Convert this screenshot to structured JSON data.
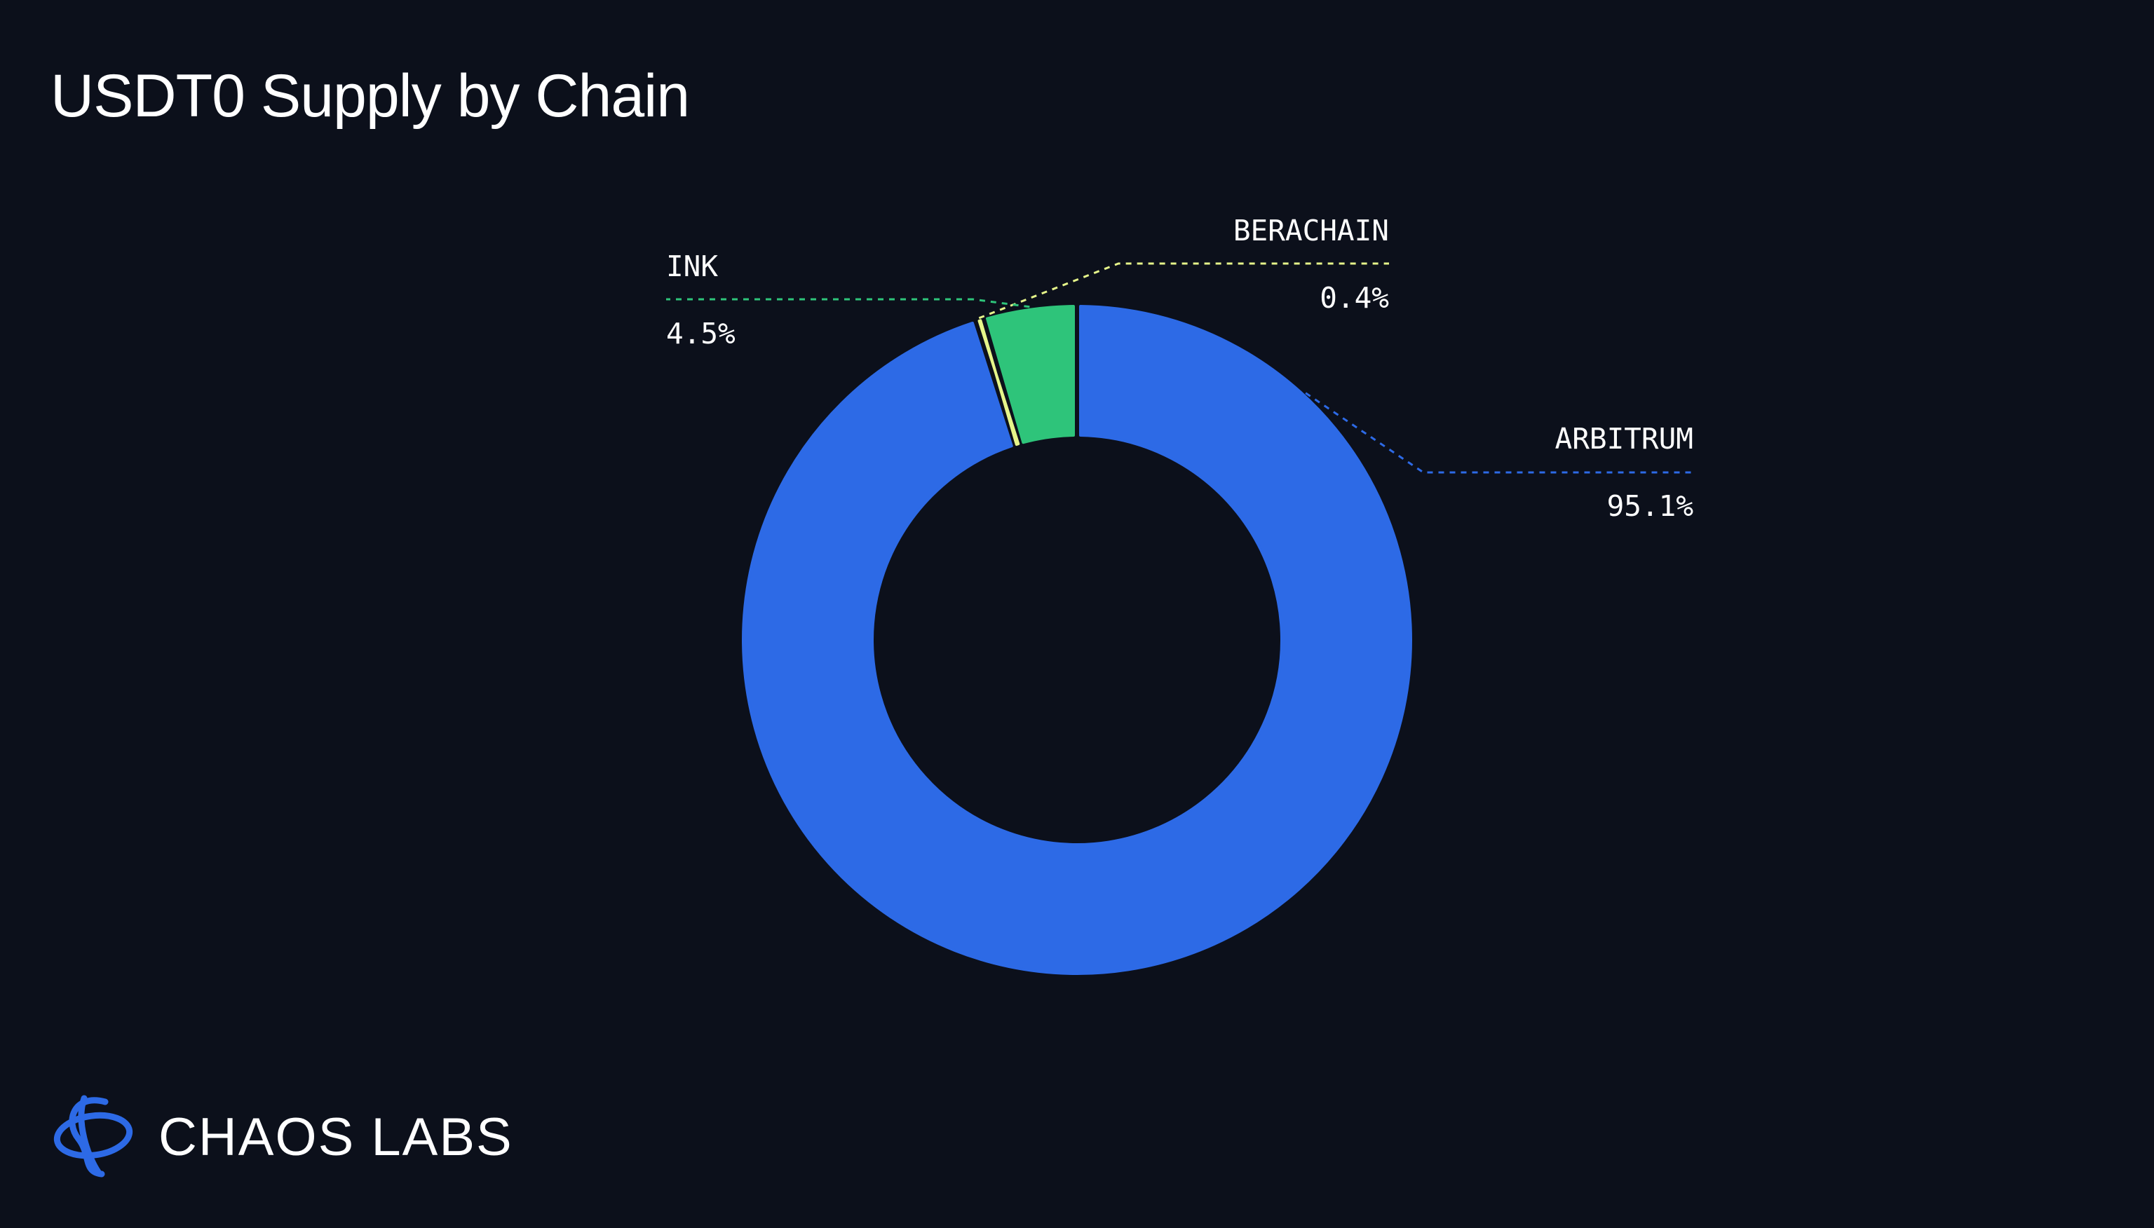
{
  "chart_data": {
    "type": "pie",
    "title": "USDT0 Supply by Chain",
    "slices": [
      {
        "name": "ARBITRUM",
        "value": 95.1,
        "label": "95.1%",
        "color": "#2d6ae6"
      },
      {
        "name": "BERACHAIN",
        "value": 0.4,
        "label": "0.4%",
        "color": "#e6f58a"
      },
      {
        "name": "INK",
        "value": 4.5,
        "label": "4.5%",
        "color": "#2ec47a"
      }
    ]
  },
  "brand": {
    "name": "CHAOS LABS",
    "logo_icon": "chaos-labs-logo-icon",
    "color": "#2d6ae6"
  },
  "colors": {
    "background": "#0c101b",
    "text": "#ffffff"
  }
}
